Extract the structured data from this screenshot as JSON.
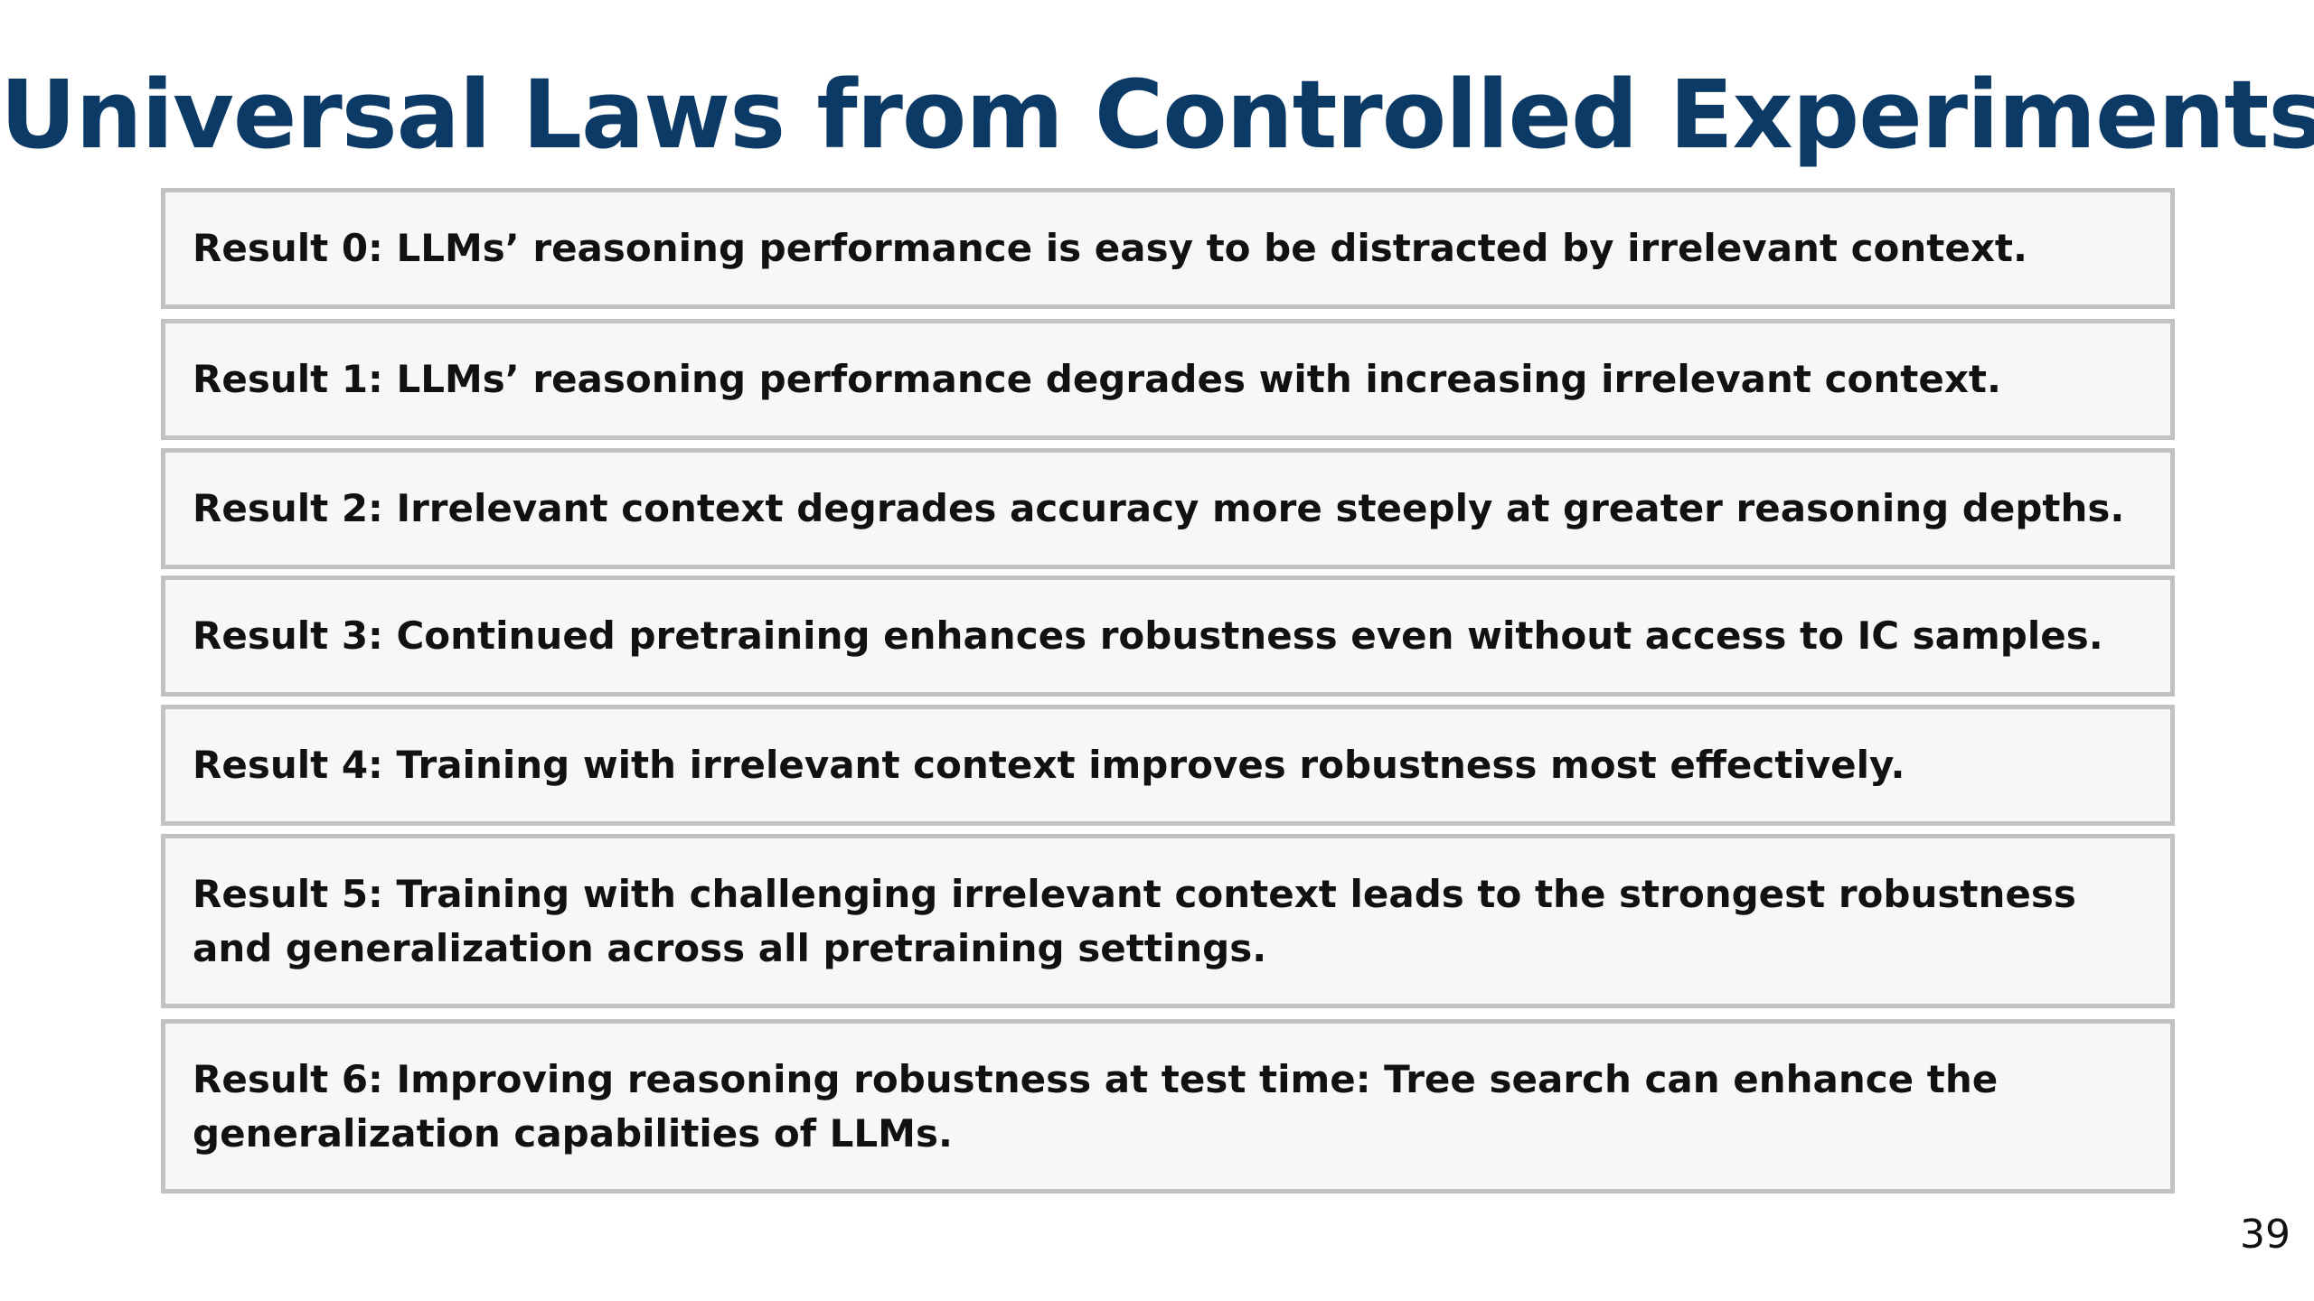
{
  "title": "Universal Laws from Controlled Experiments",
  "results": [
    "Result 0: LLMs’ reasoning performance is easy to be distracted by irrelevant context.",
    "Result 1: LLMs’ reasoning performance degrades with increasing irrelevant context.",
    "Result 2: Irrelevant context degrades accuracy more steeply at greater reasoning depths.",
    "Result 3: Continued pretraining enhances robustness even without access to IC samples.",
    "Result 4: Training with irrelevant context improves robustness most effectively.",
    "Result 5: Training with challenging irrelevant context leads to the strongest robustness and generalization across all pretraining settings.",
    "Result 6: Improving reasoning robustness at test time: Tree search can enhance the generalization capabilities of LLMs."
  ],
  "page_number": "39",
  "colors": {
    "title": "#0b3a66",
    "box_background": "#f7f7f7",
    "box_border": "#c2c2c2",
    "text": "#111111"
  }
}
